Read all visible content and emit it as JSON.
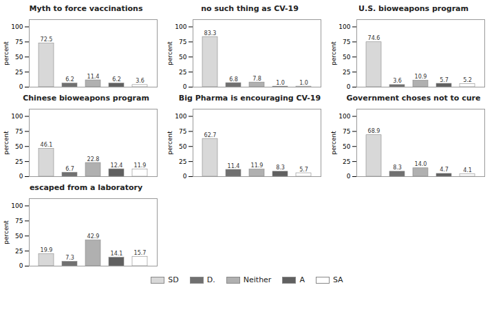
{
  "chart_data": [
    {
      "type": "bar",
      "title": "Myth to force vaccinations",
      "categories": [
        "SD",
        "D.",
        "Neither",
        "A",
        "SA"
      ],
      "values": [
        72.5,
        6.2,
        11.4,
        6.2,
        3.6
      ],
      "value_labels": [
        "72.5",
        "6.2",
        "11.4",
        "6.2",
        "3.6"
      ],
      "colors": [
        "#d8d8d8",
        "#707070",
        "#b0b0b0",
        "#606060",
        "#ffffff"
      ],
      "ylabel": "percent",
      "ylim": [
        0,
        112
      ],
      "yticks": [
        0,
        25,
        50,
        75,
        100
      ],
      "grid": false,
      "data_labels": true,
      "tick_labels": "y",
      "legend": "bottom"
    },
    {
      "type": "bar",
      "title": "no such thing as CV-19",
      "categories": [
        "SD",
        "D.",
        "Neither",
        "A",
        "SA"
      ],
      "values": [
        83.3,
        6.8,
        7.8,
        1.0,
        1.0
      ],
      "value_labels": [
        "83.3",
        "6.8",
        "7.8",
        "1.0",
        "1.0"
      ],
      "colors": [
        "#d8d8d8",
        "#707070",
        "#b0b0b0",
        "#606060",
        "#ffffff"
      ],
      "ylabel": "percent",
      "ylim": [
        0,
        112
      ],
      "yticks": [
        0,
        25,
        50,
        75,
        100
      ],
      "grid": false,
      "data_labels": true,
      "tick_labels": "y",
      "legend": "bottom"
    },
    {
      "type": "bar",
      "title": "U.S. bioweapons program",
      "categories": [
        "SD",
        "D.",
        "Neither",
        "A",
        "SA"
      ],
      "values": [
        74.6,
        3.6,
        10.9,
        5.7,
        5.2
      ],
      "value_labels": [
        "74.6",
        "3.6",
        "10.9",
        "5.7",
        "5.2"
      ],
      "colors": [
        "#d8d8d8",
        "#707070",
        "#b0b0b0",
        "#606060",
        "#ffffff"
      ],
      "ylabel": "percent",
      "ylim": [
        0,
        112
      ],
      "yticks": [
        0,
        25,
        50,
        75,
        100
      ],
      "grid": false,
      "data_labels": true,
      "tick_labels": "y",
      "legend": "bottom"
    },
    {
      "type": "bar",
      "title": "Chinese bioweapons program",
      "categories": [
        "SD",
        "D.",
        "Neither",
        "A",
        "SA"
      ],
      "values": [
        46.1,
        6.7,
        22.8,
        12.4,
        11.9
      ],
      "value_labels": [
        "46.1",
        "6.7",
        "22.8",
        "12.4",
        "11.9"
      ],
      "colors": [
        "#d8d8d8",
        "#707070",
        "#b0b0b0",
        "#606060",
        "#ffffff"
      ],
      "ylabel": "percent",
      "ylim": [
        0,
        112
      ],
      "yticks": [
        0,
        25,
        50,
        75,
        100
      ],
      "grid": false,
      "data_labels": true,
      "tick_labels": "y",
      "legend": "bottom"
    },
    {
      "type": "bar",
      "title": "Big Pharma is encouraging CV-19",
      "categories": [
        "SD",
        "D.",
        "Neither",
        "A",
        "SA"
      ],
      "values": [
        62.7,
        11.4,
        11.9,
        8.3,
        5.7
      ],
      "value_labels": [
        "62.7",
        "11.4",
        "11.9",
        "8.3",
        "5.7"
      ],
      "colors": [
        "#d8d8d8",
        "#707070",
        "#b0b0b0",
        "#606060",
        "#ffffff"
      ],
      "ylabel": "percent",
      "ylim": [
        0,
        112
      ],
      "yticks": [
        0,
        25,
        50,
        75,
        100
      ],
      "grid": false,
      "data_labels": true,
      "tick_labels": "y",
      "legend": "bottom"
    },
    {
      "type": "bar",
      "title": "Government choses not to cure",
      "categories": [
        "SD",
        "D.",
        "Neither",
        "A",
        "SA"
      ],
      "values": [
        68.9,
        8.3,
        14.0,
        4.7,
        4.1
      ],
      "value_labels": [
        "68.9",
        "8.3",
        "14.0",
        "4.7",
        "4.1"
      ],
      "colors": [
        "#d8d8d8",
        "#707070",
        "#b0b0b0",
        "#606060",
        "#ffffff"
      ],
      "ylabel": "percent",
      "ylim": [
        0,
        112
      ],
      "yticks": [
        0,
        25,
        50,
        75,
        100
      ],
      "grid": false,
      "data_labels": true,
      "tick_labels": "y",
      "legend": "bottom"
    },
    {
      "type": "bar",
      "title": "escaped from a laboratory",
      "categories": [
        "SD",
        "D.",
        "Neither",
        "A",
        "SA"
      ],
      "values": [
        19.9,
        7.3,
        42.9,
        14.1,
        15.7
      ],
      "value_labels": [
        "19.9",
        "7.3",
        "42.9",
        "14.1",
        "15.7"
      ],
      "colors": [
        "#d8d8d8",
        "#707070",
        "#b0b0b0",
        "#606060",
        "#ffffff"
      ],
      "ylabel": "percent",
      "ylim": [
        0,
        112
      ],
      "yticks": [
        0,
        25,
        50,
        75,
        100
      ],
      "grid": false,
      "data_labels": true,
      "tick_labels": "y",
      "legend": "bottom"
    }
  ]
}
